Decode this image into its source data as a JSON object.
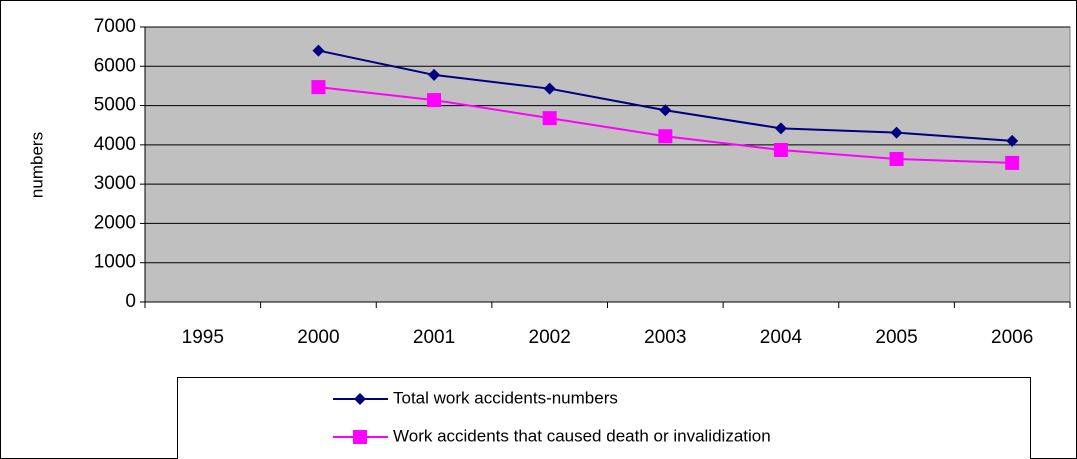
{
  "chart_data": {
    "type": "line",
    "ylabel": "numbers",
    "categories": [
      "1995",
      "2000",
      "2001",
      "2002",
      "2003",
      "2004",
      "2005",
      "2006"
    ],
    "series": [
      {
        "name": "Total work accidents-numbers",
        "color": "#000080",
        "marker": "diamond",
        "values": [
          null,
          6400,
          5780,
          5430,
          4880,
          4420,
          4310,
          4100
        ]
      },
      {
        "name": "Work accidents that caused death or invalidization",
        "color": "#ff00ff",
        "marker": "square",
        "values": [
          null,
          5470,
          5140,
          4680,
          4220,
          3870,
          3640,
          3540
        ]
      }
    ],
    "ylim": [
      0,
      7000
    ],
    "yticks": [
      0,
      1000,
      2000,
      3000,
      4000,
      5000,
      6000,
      7000
    ],
    "grid": true,
    "legend": "bottom",
    "plot_background": "#c0c0c0"
  }
}
